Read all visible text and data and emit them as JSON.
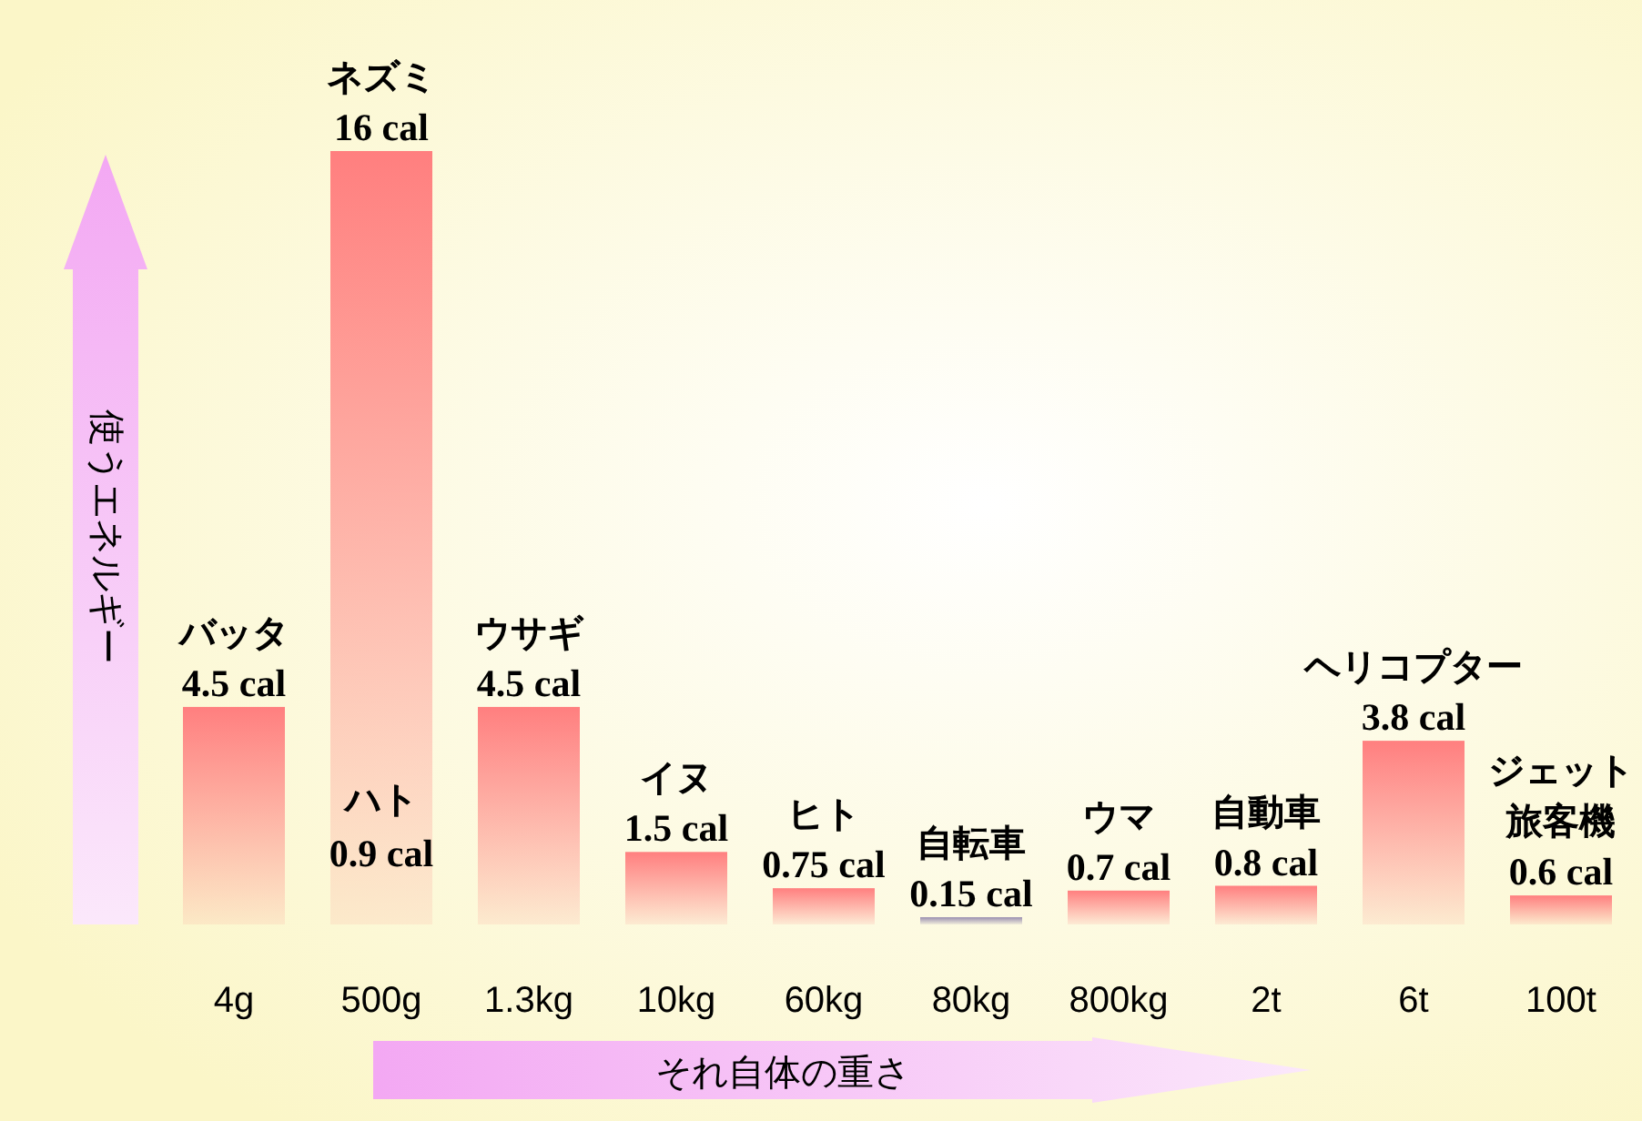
{
  "chart_data": {
    "type": "bar",
    "xlabel": "それ自体の重さ",
    "ylabel": "使うエネルギー",
    "categories": [
      "4g",
      "500g",
      "1.3kg",
      "10kg",
      "60kg",
      "80kg",
      "800kg",
      "2t",
      "6t",
      "100t"
    ],
    "values": [
      4.5,
      16,
      4.5,
      1.5,
      0.75,
      0.15,
      0.7,
      0.8,
      3.8,
      0.6
    ],
    "colors": [
      "#ff7f7f",
      "#ff7f7f",
      "#ff7f7f",
      "#ff7f7f",
      "#ff7f7f",
      "#9a8fb0",
      "#ff7f7f",
      "#ff7f7f",
      "#ff7f7f",
      "#ff7f7f"
    ],
    "value_labels": [
      "4.5 cal",
      "16 cal",
      "4.5 cal",
      "1.5 cal",
      "0.75 cal",
      "0.15 cal",
      "0.7 cal",
      "0.8 cal",
      "3.8 cal",
      "0.6 cal"
    ],
    "annotations": [
      {
        "text": "バッタ",
        "x": "4g",
        "y": 4.5
      },
      {
        "text": "ネズミ",
        "x": "500g",
        "y": 16
      },
      "ハト\n0.9 cal",
      {
        "text": "ウサギ",
        "x": "1.3kg",
        "y": 4.5
      },
      {
        "text": "イヌ",
        "x": "10kg",
        "y": 1.5
      },
      {
        "text": "ヒト",
        "x": "60kg",
        "y": 0.75
      },
      {
        "text": "自転車",
        "x": "80kg",
        "y": 0.15
      },
      {
        "text": "ウマ",
        "x": "800kg",
        "y": 0.7
      },
      {
        "text": "自動車",
        "x": "2t",
        "y": 0.8
      },
      {
        "text": "ヘリコプター",
        "x": "6t",
        "y": 3.8
      },
      {
        "text": "ジェット旅客機",
        "x": "100t",
        "y": 0.6
      }
    ]
  }
}
